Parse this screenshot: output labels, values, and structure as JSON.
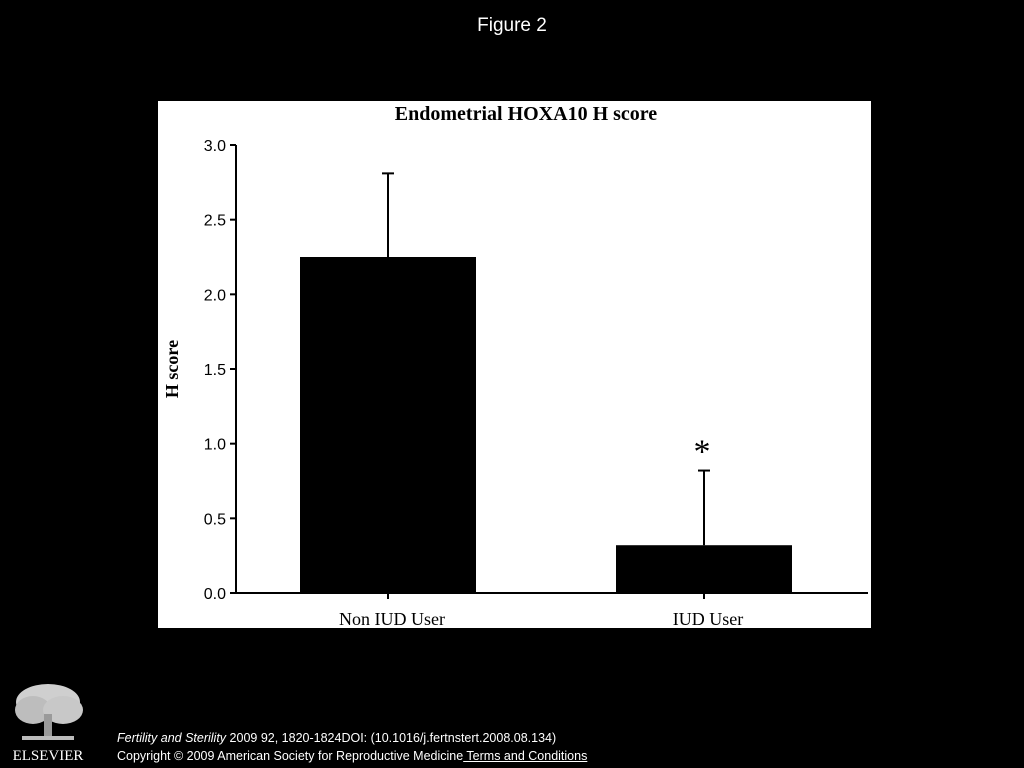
{
  "slide": {
    "title": "Figure 2"
  },
  "chart_data": {
    "type": "bar",
    "title": "Endometrial HOXA10 H score",
    "xlabel": "",
    "ylabel": "H score",
    "categories": [
      "Non IUD User",
      "IUD User"
    ],
    "values": [
      2.25,
      0.32
    ],
    "error_upper": [
      0.56,
      0.5
    ],
    "ylim": [
      0,
      3.0
    ],
    "yticks": [
      "0.0",
      "0.5",
      "1.0",
      "1.5",
      "2.0",
      "2.5",
      "3.0"
    ],
    "annotations": [
      {
        "category": "IUD User",
        "text": "*"
      }
    ],
    "grid": false,
    "bar_color": "#000000"
  },
  "footer": {
    "journal": "Fertility and Sterility",
    "citation_rest": " 2009 92, 1820-1824DOI: (10.1016/j.fertnstert.2008.08.134)",
    "copyright": "Copyright © 2009 American Society for Reproductive Medicine",
    "terms_link": " Terms and Conditions",
    "publisher_logo": "ELSEVIER"
  }
}
